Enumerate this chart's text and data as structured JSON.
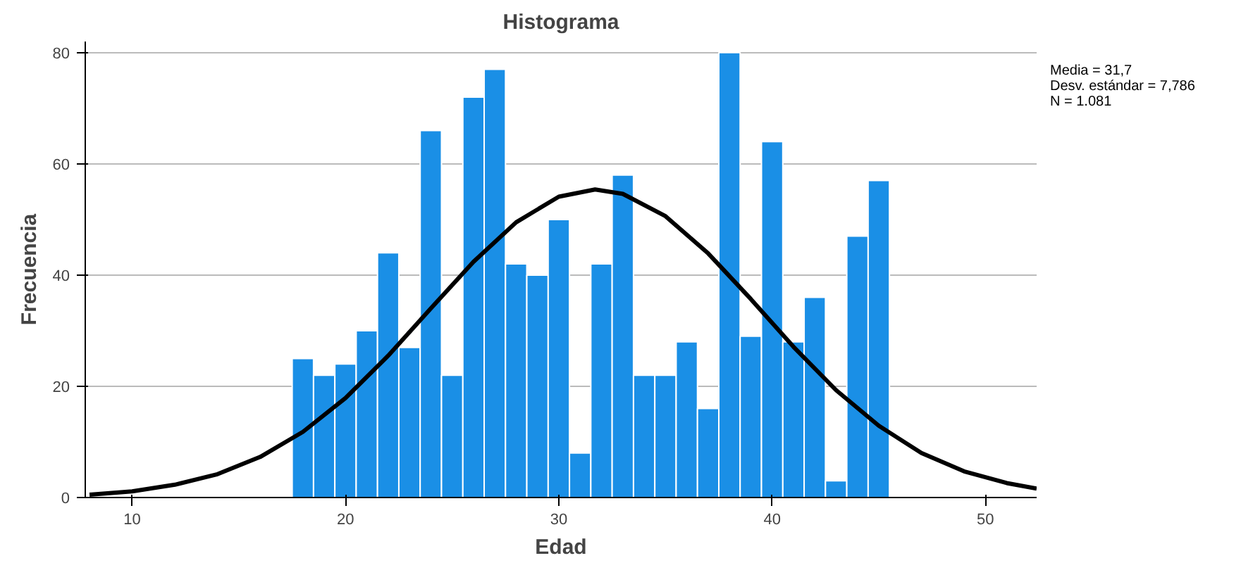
{
  "chart_data": [
    {
      "type": "histogram",
      "title": "Histograma",
      "xlabel": "Edad",
      "ylabel": "Frecuencia",
      "bins": [
        17.5,
        18.5,
        19.5,
        20.5,
        21.5,
        22.5,
        23.5,
        24.5,
        25.5,
        26.5,
        27.5,
        28.5,
        29.5,
        30.5,
        31.5,
        32.5,
        33.5,
        34.5,
        35.5,
        36.5,
        37.5,
        38.5,
        39.5,
        40.5,
        41.5,
        42.5,
        43.5,
        44.5,
        45.5
      ],
      "values": [
        25,
        22,
        24,
        30,
        44,
        27,
        66,
        22,
        72,
        77,
        42,
        40,
        50,
        8,
        42,
        58,
        22,
        22,
        28,
        16,
        80,
        29,
        64,
        28,
        36,
        3,
        47,
        57
      ],
      "color": "#1a8fe6",
      "series": [
        {
          "type": "line",
          "color": "#000000",
          "x": [
            8,
            10,
            12,
            14,
            16,
            18,
            20,
            22,
            24,
            26,
            28,
            30,
            31.7,
            33,
            35,
            37,
            39,
            41,
            43,
            45,
            47,
            49,
            51,
            52.4
          ],
          "values": [
            0.5,
            1.1,
            2.3,
            4.2,
            7.3,
            11.8,
            17.9,
            25.5,
            34.0,
            42.4,
            49.5,
            54.1,
            55.4,
            54.6,
            50.6,
            43.9,
            35.7,
            27.1,
            19.3,
            12.9,
            8.0,
            4.7,
            2.6,
            1.6
          ]
        }
      ],
      "xlim": [
        7.8,
        52.4
      ],
      "ylim": [
        0,
        82
      ],
      "xticks": [
        10,
        20,
        30,
        40,
        50
      ],
      "yticks": [
        0,
        20,
        40,
        60,
        80
      ],
      "grid": "y",
      "annotations": [
        "Media = 31,7",
        "Desv. estándar = 7,786",
        "N = 1.081"
      ]
    }
  ]
}
